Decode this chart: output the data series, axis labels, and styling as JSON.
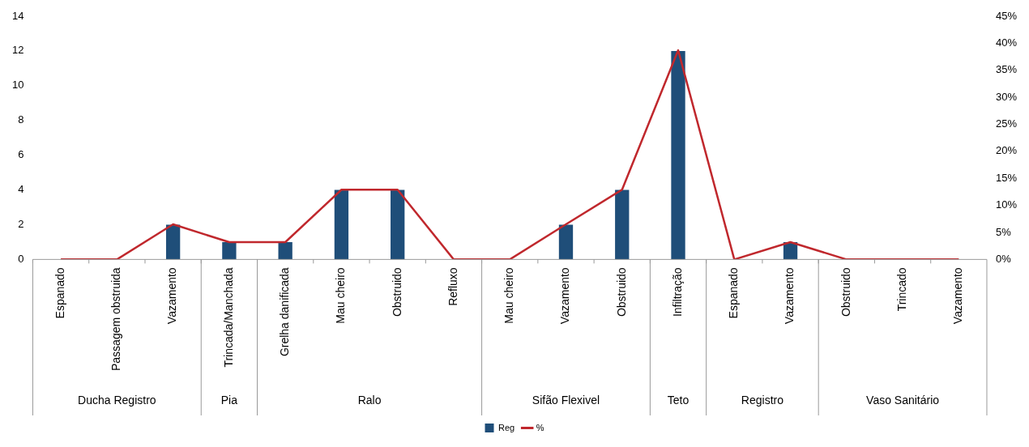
{
  "chart_data": {
    "type": "bar",
    "categories": [
      "Espanado",
      "Passagem obstruida",
      "Vazamento",
      "Trincada/Manchada",
      "Grelha danificada",
      "Mau cheiro",
      "Obstruido",
      "Refluxo",
      "Mau cheiro",
      "Vazamento",
      "Obstruido",
      "Infiltração",
      "Espanado",
      "Vazamento",
      "Obstruido",
      "Trincado",
      "Vazamento"
    ],
    "series": [
      {
        "name": "Reg",
        "color": "#1f4e79",
        "values": [
          0,
          0,
          2,
          1,
          1,
          4,
          4,
          0,
          0,
          2,
          4,
          12,
          0,
          1,
          0,
          0,
          0
        ]
      },
      {
        "name": "%",
        "type": "line",
        "axis": "y2",
        "color": "#c0282d",
        "values": [
          0,
          0,
          6.5,
          3.2,
          3.2,
          12.9,
          12.9,
          0,
          0,
          6.5,
          12.9,
          38.7,
          0,
          3.2,
          0,
          0,
          0
        ]
      }
    ],
    "ylim": [
      0,
      14
    ],
    "yticks": [
      0,
      2,
      4,
      6,
      8,
      10,
      12,
      14
    ],
    "y2lim": [
      0,
      45
    ],
    "y2ticks": [
      {
        "value": 0,
        "label": "0%"
      },
      {
        "value": 5,
        "label": "5%"
      },
      {
        "value": 10,
        "label": "10%"
      },
      {
        "value": 15,
        "label": "15%"
      },
      {
        "value": 20,
        "label": "20%"
      },
      {
        "value": 25,
        "label": "25%"
      },
      {
        "value": 30,
        "label": "30%"
      },
      {
        "value": 35,
        "label": "35%"
      },
      {
        "value": 40,
        "label": "40%"
      },
      {
        "value": 45,
        "label": "45%"
      }
    ],
    "annotations": [
      "Ducha Registro",
      "Pia",
      "Ralo",
      "Sifão Flexivel",
      "Teto",
      "Registro",
      "Vaso Sanitário"
    ],
    "legend": "bottom",
    "grid": false,
    "marker": "none",
    "line_style": "solid"
  }
}
